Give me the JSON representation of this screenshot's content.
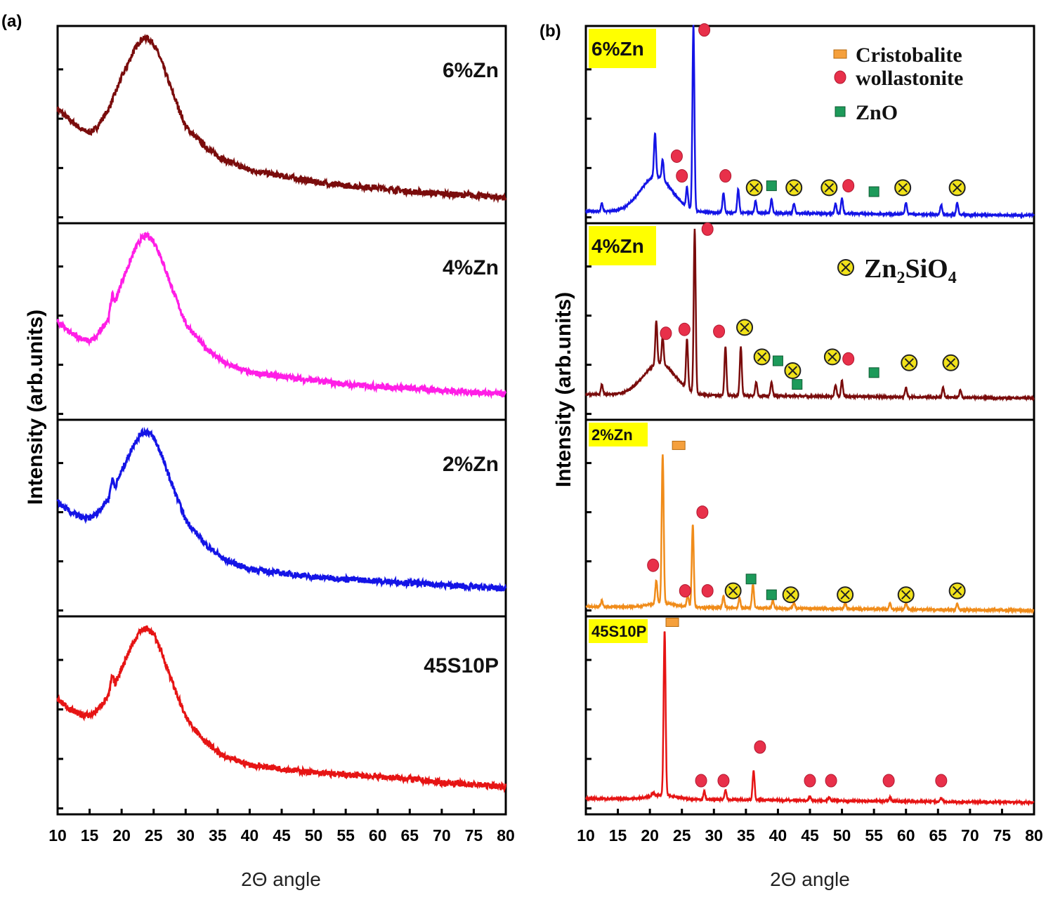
{
  "chart_data": [
    {
      "panel_label": "(a)",
      "type": "line",
      "xlabel": "2Θ angle",
      "ylabel": "Intensity (arb.units)",
      "xlim": [
        10,
        80
      ],
      "xticks": [
        10,
        15,
        20,
        25,
        30,
        35,
        40,
        45,
        50,
        55,
        60,
        65,
        70,
        75,
        80
      ],
      "stacked_panels": [
        {
          "label": "6%Zn",
          "color": "#7a0c0c",
          "x": [
            10,
            12,
            14,
            15,
            16,
            18,
            20,
            22,
            23,
            24,
            25,
            26,
            28,
            30,
            33,
            36,
            40,
            45,
            50,
            55,
            60,
            65,
            70,
            75,
            80
          ],
          "y": [
            0.58,
            0.52,
            0.47,
            0.46,
            0.48,
            0.58,
            0.74,
            0.88,
            0.93,
            0.94,
            0.91,
            0.84,
            0.66,
            0.49,
            0.39,
            0.32,
            0.27,
            0.24,
            0.21,
            0.19,
            0.18,
            0.16,
            0.15,
            0.14,
            0.13
          ]
        },
        {
          "label": "4%Zn",
          "color": "#ff1ee6",
          "x": [
            10,
            12,
            14,
            15,
            16,
            18,
            18.5,
            19,
            20,
            22,
            23,
            24,
            25,
            26,
            28,
            30,
            33,
            36,
            40,
            45,
            50,
            55,
            60,
            65,
            70,
            75,
            80
          ],
          "y": [
            0.5,
            0.44,
            0.41,
            0.4,
            0.42,
            0.52,
            0.64,
            0.6,
            0.7,
            0.86,
            0.92,
            0.94,
            0.91,
            0.84,
            0.66,
            0.49,
            0.37,
            0.29,
            0.24,
            0.22,
            0.2,
            0.18,
            0.17,
            0.16,
            0.15,
            0.14,
            0.13
          ]
        },
        {
          "label": "2%Zn",
          "color": "#1414e6",
          "x": [
            10,
            12,
            14,
            15,
            16,
            18,
            18.5,
            19,
            20,
            22,
            23,
            24,
            25,
            26,
            28,
            30,
            33,
            36,
            40,
            45,
            50,
            55,
            60,
            65,
            70,
            75,
            80
          ],
          "y": [
            0.58,
            0.53,
            0.5,
            0.5,
            0.52,
            0.6,
            0.7,
            0.66,
            0.74,
            0.88,
            0.93,
            0.94,
            0.91,
            0.84,
            0.66,
            0.49,
            0.37,
            0.29,
            0.24,
            0.22,
            0.2,
            0.19,
            0.18,
            0.17,
            0.16,
            0.15,
            0.14
          ]
        },
        {
          "label": "45S10P",
          "color": "#e61414",
          "x": [
            10,
            12,
            14,
            15,
            16,
            18,
            18.5,
            19,
            20,
            22,
            23,
            24,
            25,
            26,
            28,
            30,
            33,
            36,
            40,
            45,
            50,
            55,
            60,
            65,
            70,
            75,
            80
          ],
          "y": [
            0.58,
            0.53,
            0.5,
            0.5,
            0.52,
            0.6,
            0.7,
            0.66,
            0.74,
            0.88,
            0.93,
            0.94,
            0.91,
            0.84,
            0.66,
            0.49,
            0.37,
            0.29,
            0.25,
            0.23,
            0.21,
            0.2,
            0.19,
            0.18,
            0.16,
            0.15,
            0.14
          ]
        }
      ]
    },
    {
      "panel_label": "(b)",
      "type": "line",
      "xlabel": "2Θ angle",
      "ylabel": "Intensity (arb.units)",
      "xlim": [
        10,
        80
      ],
      "xticks": [
        10,
        15,
        20,
        25,
        30,
        35,
        40,
        45,
        50,
        55,
        60,
        65,
        70,
        75,
        80
      ],
      "legend": {
        "position": "top-right",
        "entries": [
          {
            "label": "Cristobalite",
            "marker": "square",
            "color": "#f5a03c"
          },
          {
            "label": "wollastonite",
            "marker": "circle",
            "color": "#e8304a"
          },
          {
            "label": "ZnO",
            "marker": "square",
            "color": "#1d9a5a"
          }
        ],
        "extra_entry": {
          "marker": "circled-x",
          "label_base": "Zn",
          "sub1": "2",
          "mid": "SiO",
          "sub2": "4",
          "color": "#f2e31a"
        }
      },
      "stacked_panels": [
        {
          "label": "6%Zn",
          "color": "#1414e6",
          "baseline": 0.06,
          "peaks": [
            [
              12.5,
              0.04
            ],
            [
              20.8,
              0.22
            ],
            [
              22,
              0.1
            ],
            [
              25.8,
              0.1
            ],
            [
              26.8,
              0.94
            ],
            [
              31.5,
              0.1
            ],
            [
              33.8,
              0.12
            ],
            [
              36.5,
              0.06
            ],
            [
              39,
              0.07
            ],
            [
              42.5,
              0.05
            ],
            [
              49,
              0.05
            ],
            [
              50,
              0.08
            ],
            [
              60,
              0.06
            ],
            [
              65.5,
              0.05
            ],
            [
              68,
              0.06
            ]
          ],
          "hump": {
            "center": 21,
            "height": 0.18,
            "width": 3.5
          },
          "markers": [
            {
              "type": "wollastonite",
              "x": 28.5,
              "y": 0.98
            },
            {
              "type": "wollastonite",
              "x": 24.2,
              "y": 0.34
            },
            {
              "type": "wollastonite",
              "x": 25.0,
              "y": 0.24
            },
            {
              "type": "wollastonite",
              "x": 31.8,
              "y": 0.24
            },
            {
              "type": "zn2sio4",
              "x": 36.3,
              "y": 0.18
            },
            {
              "type": "zno",
              "x": 39.0,
              "y": 0.19
            },
            {
              "type": "zn2sio4",
              "x": 42.5,
              "y": 0.18
            },
            {
              "type": "zn2sio4",
              "x": 48.0,
              "y": 0.18
            },
            {
              "type": "wollastonite",
              "x": 51.0,
              "y": 0.19
            },
            {
              "type": "zno",
              "x": 55.0,
              "y": 0.16
            },
            {
              "type": "zn2sio4",
              "x": 59.5,
              "y": 0.18
            },
            {
              "type": "zn2sio4",
              "x": 68.0,
              "y": 0.18
            }
          ]
        },
        {
          "label": "4%Zn",
          "color": "#7a0c0c",
          "baseline": 0.13,
          "peaks": [
            [
              12.5,
              0.05
            ],
            [
              21,
              0.22
            ],
            [
              22,
              0.14
            ],
            [
              25.8,
              0.25
            ],
            [
              27,
              0.83
            ],
            [
              31.8,
              0.25
            ],
            [
              34.2,
              0.25
            ],
            [
              36.6,
              0.07
            ],
            [
              39,
              0.07
            ],
            [
              49,
              0.06
            ],
            [
              50,
              0.08
            ],
            [
              60,
              0.05
            ],
            [
              65.8,
              0.05
            ],
            [
              68.5,
              0.04
            ]
          ],
          "hump": {
            "center": 21.5,
            "height": 0.16,
            "width": 3.5
          },
          "markers": [
            {
              "type": "wollastonite",
              "x": 29.0,
              "y": 0.97
            },
            {
              "type": "wollastonite",
              "x": 22.5,
              "y": 0.44
            },
            {
              "type": "wollastonite",
              "x": 25.4,
              "y": 0.46
            },
            {
              "type": "wollastonite",
              "x": 30.8,
              "y": 0.45
            },
            {
              "type": "zn2sio4",
              "x": 34.8,
              "y": 0.47
            },
            {
              "type": "zn2sio4",
              "x": 37.5,
              "y": 0.32
            },
            {
              "type": "zno",
              "x": 40.0,
              "y": 0.3
            },
            {
              "type": "zn2sio4",
              "x": 42.3,
              "y": 0.25
            },
            {
              "type": "zno",
              "x": 43.0,
              "y": 0.18
            },
            {
              "type": "zn2sio4",
              "x": 48.5,
              "y": 0.32
            },
            {
              "type": "wollastonite",
              "x": 51.0,
              "y": 0.31
            },
            {
              "type": "zno",
              "x": 55.0,
              "y": 0.24
            },
            {
              "type": "zn2sio4",
              "x": 60.5,
              "y": 0.29
            },
            {
              "type": "zn2sio4",
              "x": 67.0,
              "y": 0.29
            }
          ]
        },
        {
          "label": "2%Zn",
          "color": "#f08c1a",
          "baseline": 0.05,
          "peaks": [
            [
              12.5,
              0.03
            ],
            [
              21,
              0.12
            ],
            [
              22,
              0.76
            ],
            [
              25.9,
              0.06
            ],
            [
              26.7,
              0.42
            ],
            [
              31.5,
              0.06
            ],
            [
              34,
              0.05
            ],
            [
              36.1,
              0.12
            ],
            [
              39.2,
              0.04
            ],
            [
              42.5,
              0.03
            ],
            [
              50.5,
              0.03
            ],
            [
              57.5,
              0.03
            ],
            [
              60,
              0.03
            ],
            [
              68,
              0.03
            ]
          ],
          "hump": {
            "center": 22,
            "height": 0.02,
            "width": 3
          },
          "markers": [
            {
              "type": "cristobalite",
              "x": 24.5,
              "y": 0.87
            },
            {
              "type": "wollastonite",
              "x": 28.2,
              "y": 0.53
            },
            {
              "type": "wollastonite",
              "x": 20.5,
              "y": 0.26
            },
            {
              "type": "wollastonite",
              "x": 25.5,
              "y": 0.13
            },
            {
              "type": "wollastonite",
              "x": 29.0,
              "y": 0.13
            },
            {
              "type": "zn2sio4",
              "x": 33.0,
              "y": 0.13
            },
            {
              "type": "zno",
              "x": 35.8,
              "y": 0.19
            },
            {
              "type": "zno",
              "x": 39.0,
              "y": 0.11
            },
            {
              "type": "zn2sio4",
              "x": 42.0,
              "y": 0.11
            },
            {
              "type": "zn2sio4",
              "x": 50.5,
              "y": 0.11
            },
            {
              "type": "zn2sio4",
              "x": 60.0,
              "y": 0.11
            },
            {
              "type": "zn2sio4",
              "x": 68.0,
              "y": 0.13
            }
          ]
        },
        {
          "label": "45S10P",
          "color": "#e61414",
          "baseline": 0.08,
          "peaks": [
            [
              20.5,
              0.02
            ],
            [
              22.3,
              0.83
            ],
            [
              28.5,
              0.04
            ],
            [
              31.8,
              0.05
            ],
            [
              36.2,
              0.15
            ],
            [
              45,
              0.02
            ],
            [
              48,
              0.02
            ],
            [
              57.5,
              0.02
            ],
            [
              65.5,
              0.02
            ]
          ],
          "hump": {
            "center": 22,
            "height": 0.02,
            "width": 3
          },
          "markers": [
            {
              "type": "cristobalite",
              "x": 23.5,
              "y": 0.97
            },
            {
              "type": "wollastonite",
              "x": 37.2,
              "y": 0.34
            },
            {
              "type": "wollastonite",
              "x": 28.0,
              "y": 0.17
            },
            {
              "type": "wollastonite",
              "x": 31.5,
              "y": 0.17
            },
            {
              "type": "wollastonite",
              "x": 45.0,
              "y": 0.17
            },
            {
              "type": "wollastonite",
              "x": 48.3,
              "y": 0.17
            },
            {
              "type": "wollastonite",
              "x": 57.3,
              "y": 0.17
            },
            {
              "type": "wollastonite",
              "x": 65.5,
              "y": 0.17
            }
          ]
        }
      ]
    }
  ]
}
